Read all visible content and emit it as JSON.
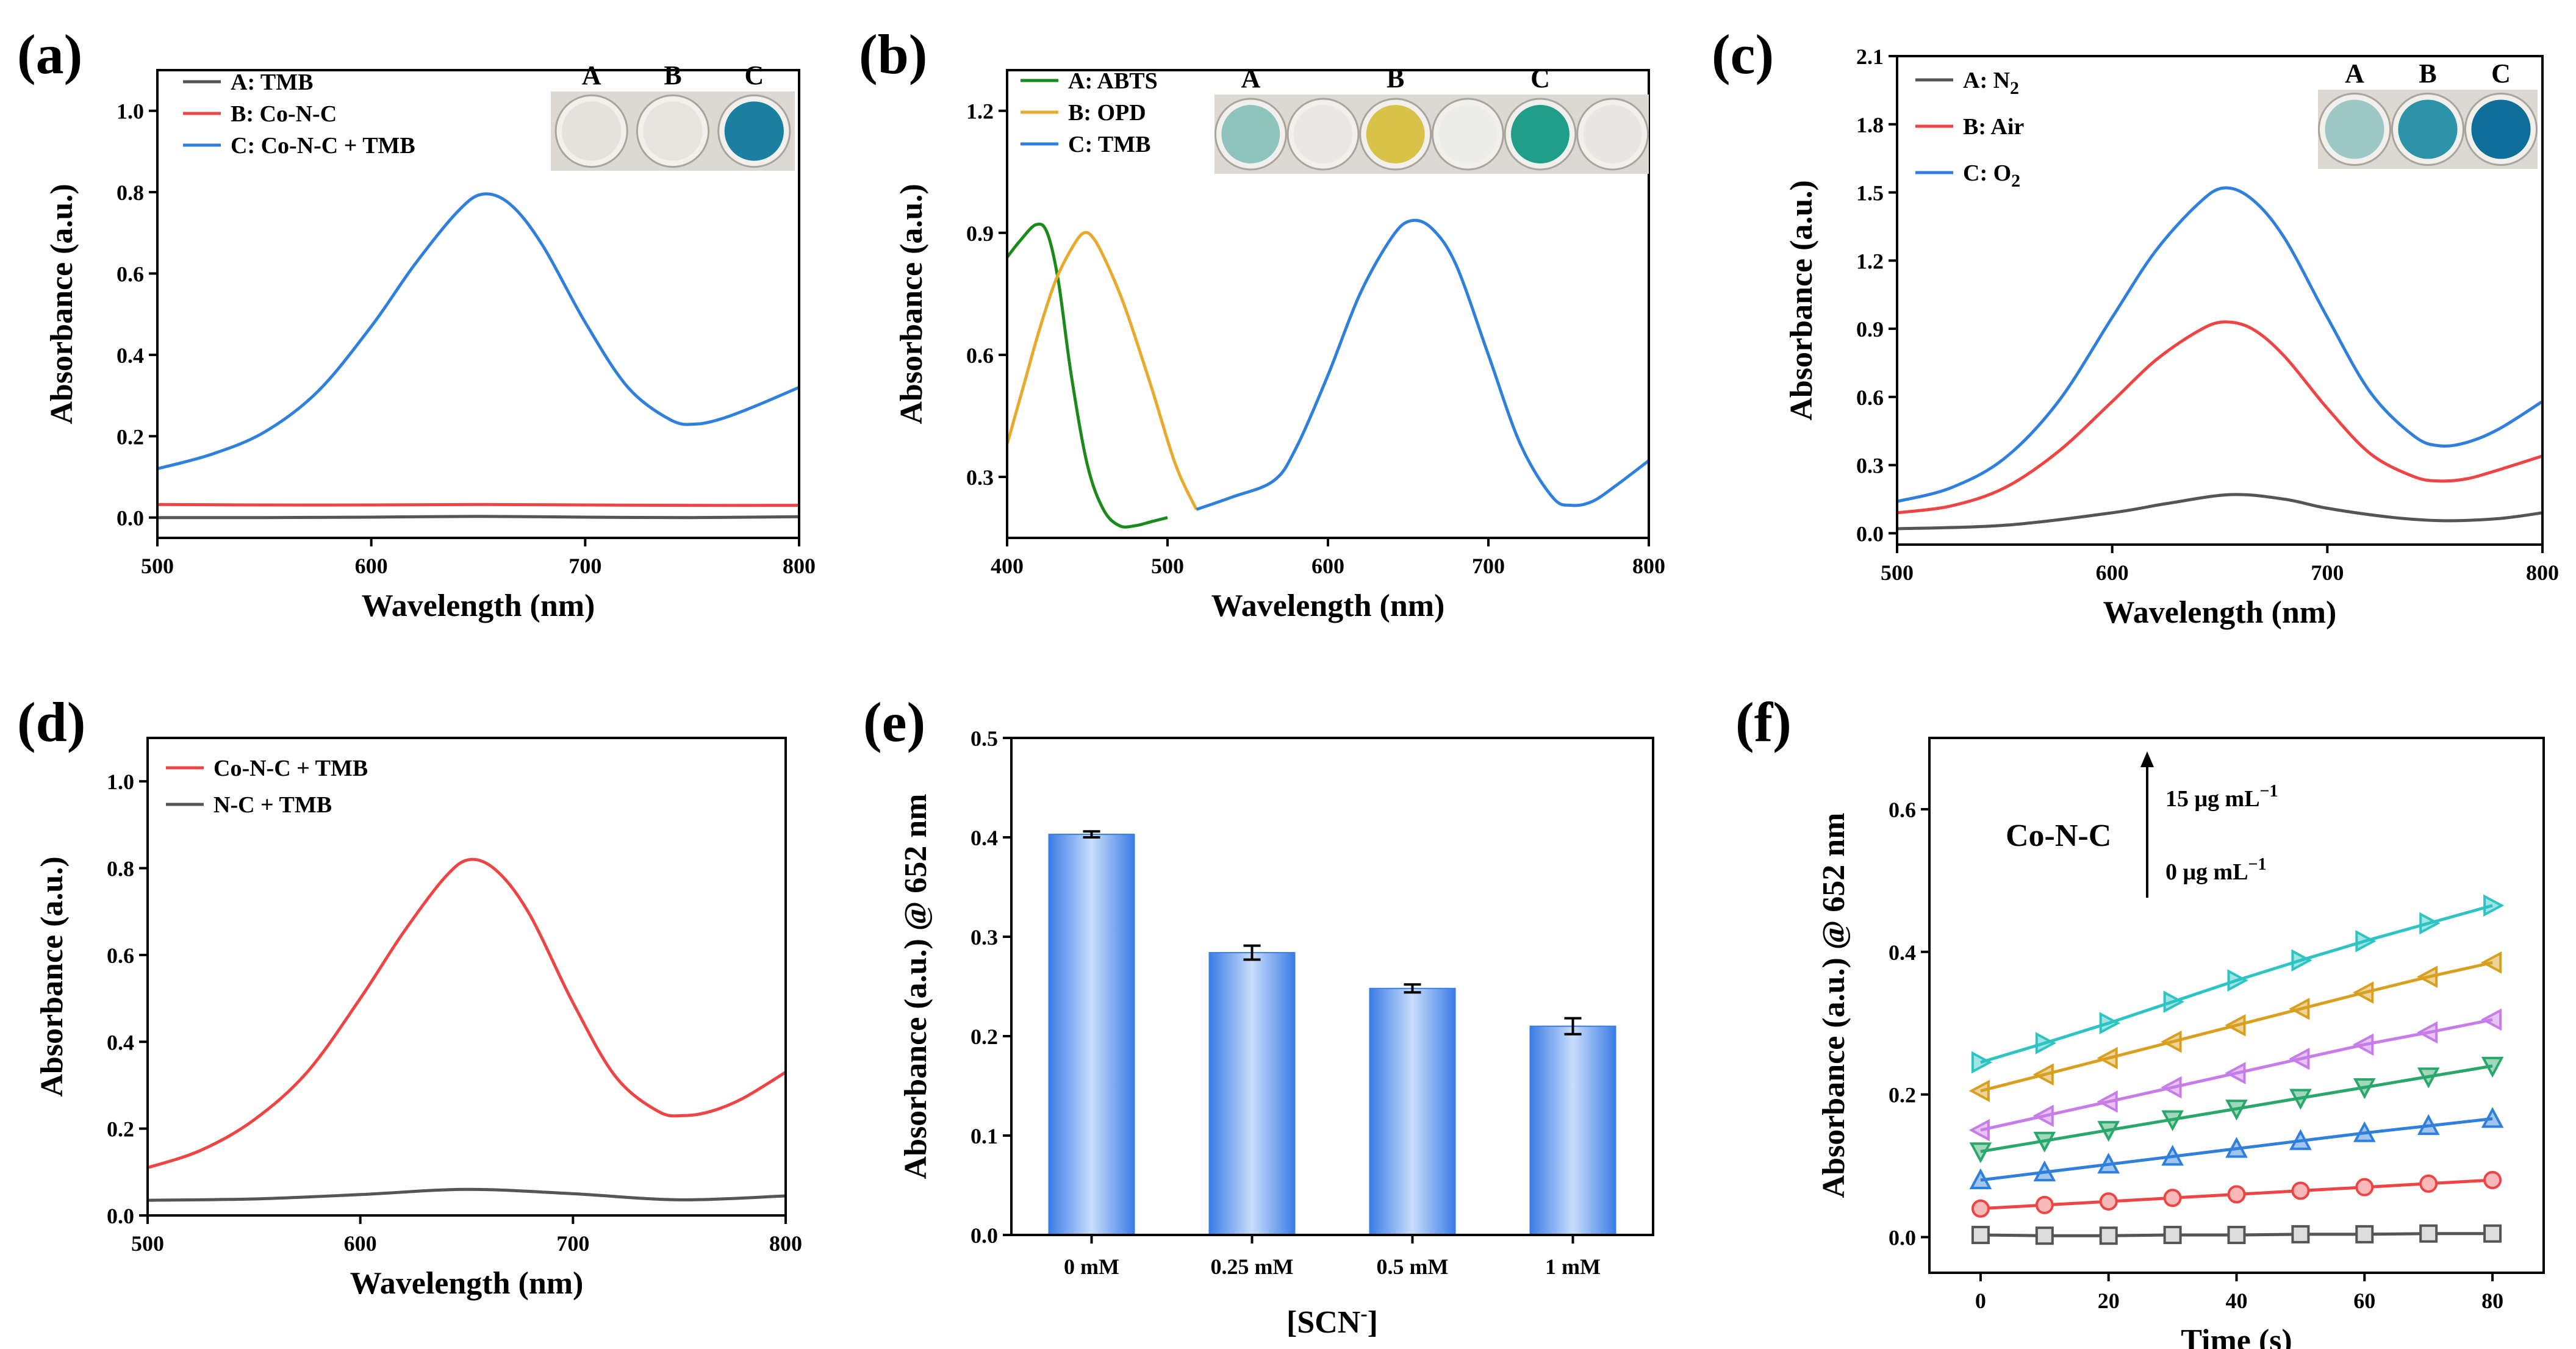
{
  "chart_data": [
    {
      "id": "a",
      "panel_label": "(a)",
      "type": "line",
      "xlabel": "Wavelength (nm)",
      "ylabel": "Absorbance (a.u.)",
      "xlim": [
        500,
        800
      ],
      "ylim": [
        -0.05,
        1.1
      ],
      "xticks": [
        500,
        600,
        700,
        800
      ],
      "yticks": [
        0.0,
        0.2,
        0.4,
        0.6,
        0.8,
        1.0
      ],
      "xdecimals": 0,
      "ydecimals": 1,
      "legend_position": "top-left",
      "series": [
        {
          "name": "A: TMB",
          "color": "#555555",
          "x": [
            500,
            550,
            600,
            650,
            700,
            750,
            800
          ],
          "y": [
            0.0,
            0.0,
            0.001,
            0.003,
            0.001,
            0.0,
            0.002
          ]
        },
        {
          "name": "B: Co-N-C",
          "color": "#ef4444",
          "x": [
            500,
            550,
            600,
            650,
            700,
            750,
            800
          ],
          "y": [
            0.032,
            0.031,
            0.031,
            0.032,
            0.031,
            0.03,
            0.03
          ]
        },
        {
          "name": "C: Co-N-C + TMB",
          "color": "#2f7fdc",
          "x": [
            500,
            525,
            550,
            575,
            600,
            620,
            640,
            652,
            665,
            680,
            700,
            720,
            740,
            752,
            765,
            780,
            800
          ],
          "y": [
            0.12,
            0.155,
            0.21,
            0.31,
            0.47,
            0.62,
            0.75,
            0.795,
            0.77,
            0.67,
            0.48,
            0.32,
            0.24,
            0.23,
            0.245,
            0.275,
            0.32
          ]
        }
      ],
      "inset": {
        "labels": [
          "A",
          "B",
          "C"
        ]
      }
    },
    {
      "id": "b",
      "panel_label": "(b)",
      "type": "line",
      "xlabel": "Wavelength (nm)",
      "ylabel": "Absorbance (a.u.)",
      "xlim": [
        400,
        800
      ],
      "ylim": [
        0.15,
        1.3
      ],
      "xticks": [
        400,
        500,
        600,
        700,
        800
      ],
      "yticks": [
        0.3,
        0.6,
        0.9,
        1.2
      ],
      "xdecimals": 0,
      "ydecimals": 1,
      "legend_position": "top-left",
      "series": [
        {
          "name": "A: ABTS",
          "color": "#1a8a1a",
          "x": [
            400,
            408,
            418,
            425,
            432,
            440,
            450,
            460,
            470,
            480,
            490,
            500
          ],
          "y": [
            0.84,
            0.88,
            0.92,
            0.9,
            0.78,
            0.55,
            0.33,
            0.22,
            0.18,
            0.18,
            0.19,
            0.2
          ]
        },
        {
          "name": "B: OPD",
          "color": "#e8a92c",
          "x": [
            400,
            410,
            420,
            430,
            440,
            448,
            455,
            465,
            475,
            490,
            505,
            518
          ],
          "y": [
            0.38,
            0.52,
            0.66,
            0.78,
            0.86,
            0.9,
            0.88,
            0.8,
            0.7,
            0.52,
            0.33,
            0.22
          ]
        },
        {
          "name": "C: TMB",
          "color": "#2f7fdc",
          "x": [
            518,
            540,
            566,
            580,
            600,
            620,
            640,
            652,
            665,
            680,
            700,
            720,
            740,
            752,
            765,
            780,
            800
          ],
          "y": [
            0.22,
            0.25,
            0.29,
            0.37,
            0.55,
            0.75,
            0.89,
            0.93,
            0.91,
            0.82,
            0.6,
            0.38,
            0.25,
            0.23,
            0.24,
            0.28,
            0.34
          ]
        }
      ],
      "inset": {
        "labels": [
          "A",
          "B",
          "C"
        ]
      }
    },
    {
      "id": "c",
      "panel_label": "(c)",
      "type": "line",
      "xlabel": "Wavelength (nm)",
      "ylabel": "Absorbance (a.u.)",
      "xlim": [
        500,
        800
      ],
      "ylim": [
        -0.05,
        2.1
      ],
      "xticks": [
        500,
        600,
        700,
        800
      ],
      "yticks": [
        0.0,
        0.3,
        0.6,
        0.9,
        1.2,
        1.5,
        1.8,
        2.1
      ],
      "xdecimals": 0,
      "ydecimals": 1,
      "legend_position": "top-left",
      "series": [
        {
          "name": "A: N",
          "name_sub": "2",
          "color": "#555555",
          "x": [
            500,
            550,
            600,
            625,
            655,
            680,
            700,
            730,
            755,
            780,
            800
          ],
          "y": [
            0.02,
            0.035,
            0.09,
            0.13,
            0.17,
            0.15,
            0.11,
            0.07,
            0.055,
            0.065,
            0.09
          ]
        },
        {
          "name": "B: Air",
          "color": "#ef4444",
          "x": [
            500,
            525,
            550,
            575,
            600,
            620,
            640,
            652,
            665,
            680,
            700,
            720,
            740,
            752,
            765,
            780,
            800
          ],
          "y": [
            0.09,
            0.12,
            0.2,
            0.36,
            0.58,
            0.76,
            0.89,
            0.93,
            0.9,
            0.78,
            0.55,
            0.35,
            0.25,
            0.23,
            0.24,
            0.28,
            0.34
          ]
        },
        {
          "name": "C: O",
          "name_sub": "2",
          "color": "#2f7fdc",
          "x": [
            500,
            525,
            550,
            575,
            600,
            620,
            640,
            652,
            665,
            680,
            700,
            720,
            740,
            752,
            765,
            780,
            800
          ],
          "y": [
            0.14,
            0.2,
            0.33,
            0.58,
            0.95,
            1.24,
            1.45,
            1.52,
            1.47,
            1.3,
            0.95,
            0.62,
            0.43,
            0.385,
            0.4,
            0.46,
            0.58
          ]
        }
      ],
      "inset": {
        "labels": [
          "A",
          "B",
          "C"
        ]
      }
    },
    {
      "id": "d",
      "panel_label": "(d)",
      "type": "line",
      "xlabel": "Wavelength (nm)",
      "ylabel": "Absorbance (a.u.)",
      "xlim": [
        500,
        800
      ],
      "ylim": [
        0.0,
        1.1
      ],
      "xticks": [
        500,
        600,
        700,
        800
      ],
      "yticks": [
        0.0,
        0.2,
        0.4,
        0.6,
        0.8,
        1.0
      ],
      "xdecimals": 0,
      "ydecimals": 1,
      "legend_position": "top-left",
      "series": [
        {
          "name": "Co-N-C + TMB",
          "color": "#ef4444",
          "x": [
            500,
            525,
            550,
            575,
            600,
            620,
            640,
            652,
            665,
            680,
            700,
            720,
            740,
            752,
            765,
            780,
            800
          ],
          "y": [
            0.11,
            0.15,
            0.22,
            0.33,
            0.5,
            0.65,
            0.78,
            0.82,
            0.79,
            0.69,
            0.49,
            0.32,
            0.24,
            0.23,
            0.24,
            0.27,
            0.33
          ]
        },
        {
          "name": "N-C + TMB",
          "color": "#555555",
          "x": [
            500,
            550,
            600,
            650,
            700,
            750,
            800
          ],
          "y": [
            0.035,
            0.038,
            0.048,
            0.06,
            0.05,
            0.036,
            0.045
          ]
        }
      ]
    },
    {
      "id": "e",
      "panel_label": "(e)",
      "type": "bar",
      "xlabel": "[SCN",
      "xlabel_sup": "-",
      "xlabel_end": "]",
      "ylabel": "Absorbance (a.u.) @ 652 nm",
      "ylim": [
        0.0,
        0.5
      ],
      "yticks": [
        0.0,
        0.1,
        0.2,
        0.3,
        0.4,
        0.5
      ],
      "ydecimals": 1,
      "categories": [
        "0 mM",
        "0.25 mM",
        "0.5 mM",
        "1 mM"
      ],
      "values": [
        0.403,
        0.284,
        0.248,
        0.21
      ],
      "errors": [
        0.003,
        0.007,
        0.004,
        0.008
      ],
      "bar_color": "#5b9bf0"
    },
    {
      "id": "f",
      "panel_label": "(f)",
      "type": "scatter",
      "xlabel": "Time (s)",
      "ylabel": "Absorbance (a.u.) @ 652 nm",
      "xlim": [
        -8,
        88
      ],
      "ylim": [
        -0.05,
        0.7
      ],
      "xticks": [
        0,
        20,
        40,
        60,
        80
      ],
      "yticks": [
        0.0,
        0.2,
        0.4,
        0.6
      ],
      "xdecimals": 0,
      "ydecimals": 1,
      "annotation": {
        "title": "Co-N-C",
        "top": "15  μg mL",
        "top_sup": "−1",
        "bottom": "0  μg mL",
        "bottom_sup": "−1"
      },
      "x": [
        0,
        10,
        20,
        30,
        40,
        50,
        60,
        70,
        80
      ],
      "series": [
        {
          "marker": "square",
          "color": "#555555",
          "y": [
            0.003,
            0.002,
            0.002,
            0.003,
            0.003,
            0.004,
            0.004,
            0.005,
            0.005
          ]
        },
        {
          "marker": "circle",
          "color": "#ef4444",
          "y": [
            0.04,
            0.045,
            0.05,
            0.055,
            0.06,
            0.065,
            0.07,
            0.075,
            0.08
          ]
        },
        {
          "marker": "triangle-up",
          "color": "#2f7fdc",
          "y": [
            0.08,
            0.091,
            0.102,
            0.113,
            0.124,
            0.135,
            0.146,
            0.156,
            0.166
          ]
        },
        {
          "marker": "triangle-down",
          "color": "#2aa86b",
          "y": [
            0.12,
            0.135,
            0.15,
            0.165,
            0.18,
            0.195,
            0.21,
            0.225,
            0.24
          ]
        },
        {
          "marker": "triangle-left",
          "color": "#c77ce8",
          "y": [
            0.15,
            0.17,
            0.19,
            0.21,
            0.23,
            0.25,
            0.27,
            0.287,
            0.305
          ]
        },
        {
          "marker": "triangle-left",
          "color": "#d9a020",
          "y": [
            0.205,
            0.228,
            0.251,
            0.274,
            0.297,
            0.32,
            0.343,
            0.365,
            0.385
          ]
        },
        {
          "marker": "triangle-right",
          "color": "#2ec4c4",
          "y": [
            0.245,
            0.272,
            0.3,
            0.33,
            0.36,
            0.388,
            0.415,
            0.44,
            0.465
          ]
        }
      ]
    }
  ]
}
